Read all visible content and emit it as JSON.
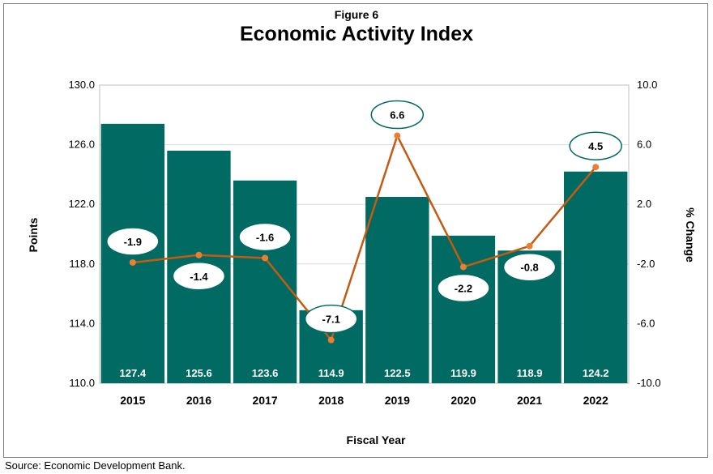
{
  "figure_label": "Figure 6",
  "source_note": "Source: Economic Development Bank.",
  "chart_data": {
    "type": "bar",
    "title": "Economic Activity Index",
    "xlabel": "Fiscal Year",
    "ylabel": "Points",
    "y2label": "% Change",
    "categories": [
      "2015",
      "2016",
      "2017",
      "2018",
      "2019",
      "2020",
      "2021",
      "2022"
    ],
    "ylim": [
      110.0,
      130.0
    ],
    "y2lim": [
      -10.0,
      10.0
    ],
    "yticks": [
      "110.0",
      "114.0",
      "118.0",
      "122.0",
      "126.0",
      "130.0"
    ],
    "y2ticks": [
      "-10.0",
      "-6.0",
      "-2.0",
      "2.0",
      "6.0",
      "10.0"
    ],
    "grid": true,
    "series": [
      {
        "type": "bar",
        "axis": "left",
        "values": [
          127.4,
          125.6,
          123.6,
          114.9,
          122.5,
          119.9,
          118.9,
          124.2
        ],
        "labels": [
          "127.4",
          "125.6",
          "123.6",
          "114.9",
          "122.5",
          "119.9",
          "118.9",
          "124.2"
        ]
      },
      {
        "type": "line",
        "axis": "right",
        "values": [
          -1.9,
          -1.4,
          -1.6,
          -7.1,
          6.6,
          -2.2,
          -0.8,
          4.5
        ],
        "labels": [
          "-1.9",
          "-1.4",
          "-1.6",
          "-7.1",
          "6.6",
          "-2.2",
          "-0.8",
          "4.5"
        ]
      }
    ],
    "colors": {
      "bar": "#006a63",
      "line": "#c55a11",
      "marker": "#ed7d31",
      "callout_border": "#006a63",
      "grid": "#d9d9d9"
    }
  }
}
